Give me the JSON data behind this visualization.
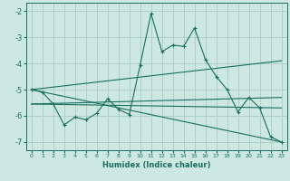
{
  "xlabel": "Humidex (Indice chaleur)",
  "ylabel": "",
  "xlim": [
    -0.5,
    23.5
  ],
  "ylim": [
    -7.3,
    -1.7
  ],
  "yticks": [
    -7,
    -6,
    -5,
    -4,
    -3,
    -2
  ],
  "xticks": [
    0,
    1,
    2,
    3,
    4,
    5,
    6,
    7,
    8,
    9,
    10,
    11,
    12,
    13,
    14,
    15,
    16,
    17,
    18,
    19,
    20,
    21,
    22,
    23
  ],
  "bg_color": "#cce8e0",
  "grid_color": "#aaccc4",
  "line_color": "#1a6e60",
  "line1_x": [
    0,
    1,
    2,
    3,
    4,
    5,
    6,
    7,
    8,
    9,
    10,
    11,
    12,
    13,
    14,
    15,
    16,
    17,
    18,
    19,
    20,
    21,
    22,
    23
  ],
  "line1_y": [
    -5.0,
    -5.1,
    -5.55,
    -6.35,
    -6.05,
    -6.15,
    -5.9,
    -5.35,
    -5.75,
    -5.95,
    -4.05,
    -2.1,
    -3.55,
    -3.3,
    -3.35,
    -2.65,
    -3.85,
    -4.5,
    -5.0,
    -5.85,
    -5.3,
    -5.7,
    -6.8,
    -7.0
  ],
  "line2_x": [
    0,
    23
  ],
  "line2_y": [
    -5.0,
    -3.9
  ],
  "line3_x": [
    0,
    23
  ],
  "line3_y": [
    -5.55,
    -5.3
  ],
  "line4_x": [
    0,
    23
  ],
  "line4_y": [
    -5.55,
    -5.7
  ],
  "line5_x": [
    0,
    23
  ],
  "line5_y": [
    -5.0,
    -7.0
  ]
}
